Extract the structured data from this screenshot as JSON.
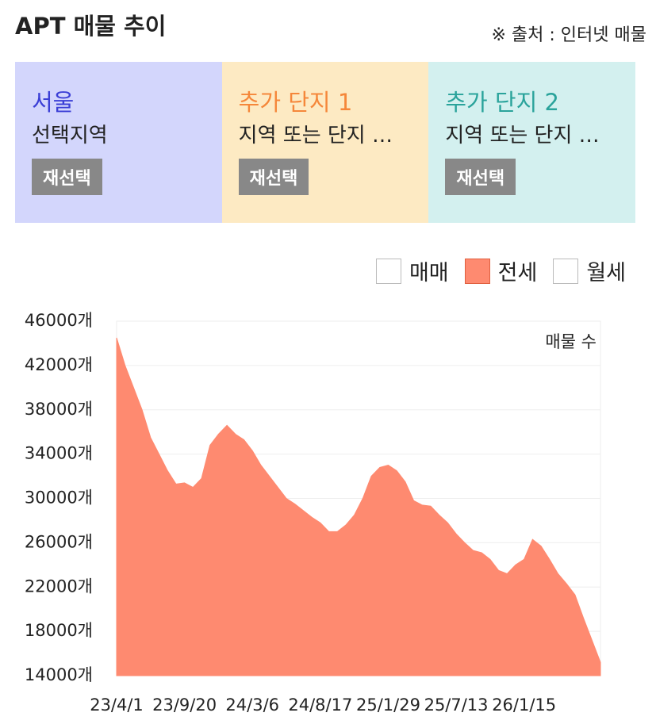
{
  "header": {
    "title": "APT 매물 추이",
    "source": "※ 출처 : 인터넷 매물"
  },
  "panels": [
    {
      "title": "서울",
      "subtitle": "선택지역",
      "button": "재선택",
      "color": "#3b3fd6",
      "background": "#d3d6fc"
    },
    {
      "title": "추가 단지 1",
      "subtitle": "지역 또는 단지 …",
      "button": "재선택",
      "color": "#f5873a",
      "background": "#fdeac3"
    },
    {
      "title": "추가 단지 2",
      "subtitle": "지역 또는 단지 …",
      "button": "재선택",
      "color": "#2aa39b",
      "background": "#d3f0ef"
    }
  ],
  "filters": [
    {
      "label": "매매",
      "checked": false
    },
    {
      "label": "전세",
      "checked": true
    },
    {
      "label": "월세",
      "checked": false
    }
  ],
  "chart_data": {
    "type": "area",
    "annotation": "매물 수",
    "color": "#fe8a70",
    "grid": true,
    "categories": [
      "23/4/1",
      null,
      null,
      null,
      null,
      null,
      null,
      null,
      "23/9/20",
      null,
      null,
      null,
      null,
      null,
      null,
      null,
      "24/3/6",
      null,
      null,
      null,
      null,
      null,
      null,
      null,
      "24/8/17",
      null,
      null,
      null,
      null,
      null,
      null,
      null,
      "25/1/29",
      null,
      null,
      null,
      null,
      null,
      null,
      null,
      "25/7/13",
      null,
      null,
      null,
      null,
      null,
      null,
      null,
      "26/1/15",
      null,
      null,
      null,
      null,
      null,
      null,
      null,
      null,
      null
    ],
    "values": [
      44500,
      42000,
      40000,
      38000,
      35500,
      34000,
      32500,
      31300,
      31400,
      31000,
      31800,
      34800,
      35800,
      36600,
      35800,
      35300,
      34300,
      33000,
      32000,
      31000,
      30000,
      29500,
      28900,
      28300,
      27800,
      27000,
      27000,
      27600,
      28500,
      30000,
      32000,
      32800,
      33000,
      32500,
      31500,
      29800,
      29400,
      29300,
      28500,
      27800,
      26800,
      26000,
      25300,
      25100,
      24500,
      23500,
      23200,
      24000,
      24500,
      26300,
      25700,
      24500,
      23200,
      22300,
      21300,
      19200,
      17200,
      15200
    ],
    "ylim": [
      14000,
      46000
    ],
    "yticks": [
      {
        "value": 14000,
        "label": "14000개"
      },
      {
        "value": 18000,
        "label": "18000개"
      },
      {
        "value": 22000,
        "label": "22000개"
      },
      {
        "value": 26000,
        "label": "26000개"
      },
      {
        "value": 30000,
        "label": "30000개"
      },
      {
        "value": 34000,
        "label": "34000개"
      },
      {
        "value": 38000,
        "label": "38000개"
      },
      {
        "value": 42000,
        "label": "42000개"
      },
      {
        "value": 46000,
        "label": "46000개"
      }
    ]
  }
}
